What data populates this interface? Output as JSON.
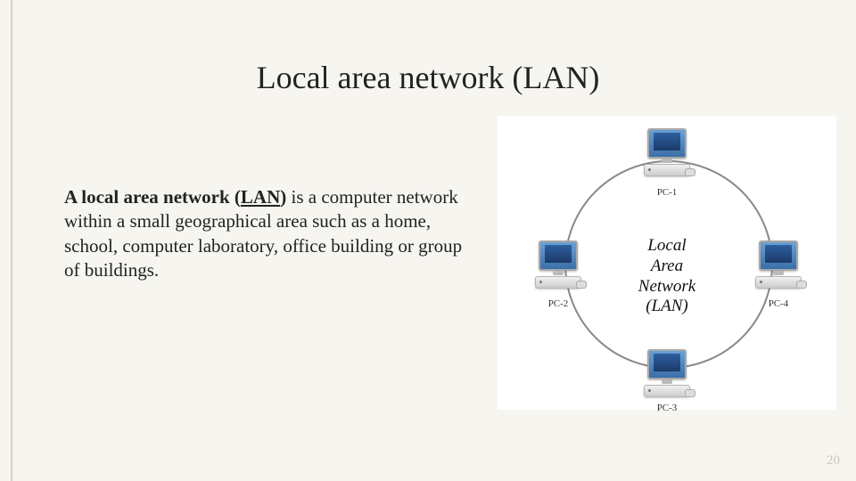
{
  "slide": {
    "title": "Local area network (LAN)",
    "body_lead": "A local area network (",
    "body_lan": "LAN",
    "body_lead_close": ")",
    "body_rest": " is a computer network within a small geographical area such as a home, school, computer laboratory, office building or group of buildings.",
    "page_number": "20"
  },
  "diagram": {
    "center_label_line1": "Local",
    "center_label_line2": "Area",
    "center_label_line3": "Network",
    "center_label_line4": "(LAN)",
    "nodes": [
      {
        "id": "pc1",
        "label": "PC-1"
      },
      {
        "id": "pc2",
        "label": "PC-2"
      },
      {
        "id": "pc3",
        "label": "PC-3"
      },
      {
        "id": "pc4",
        "label": "PC-4"
      }
    ],
    "colors": {
      "background": "#ffffff",
      "ring": "#888888",
      "monitor_top": "#6aa0d4",
      "monitor_bottom": "#3a6fa8"
    }
  },
  "theme": {
    "slide_bg": "#f7f5f0",
    "margin_rule": "#d8d2c2",
    "text_color": "#222222",
    "page_num_color": "#cfc7b6"
  }
}
